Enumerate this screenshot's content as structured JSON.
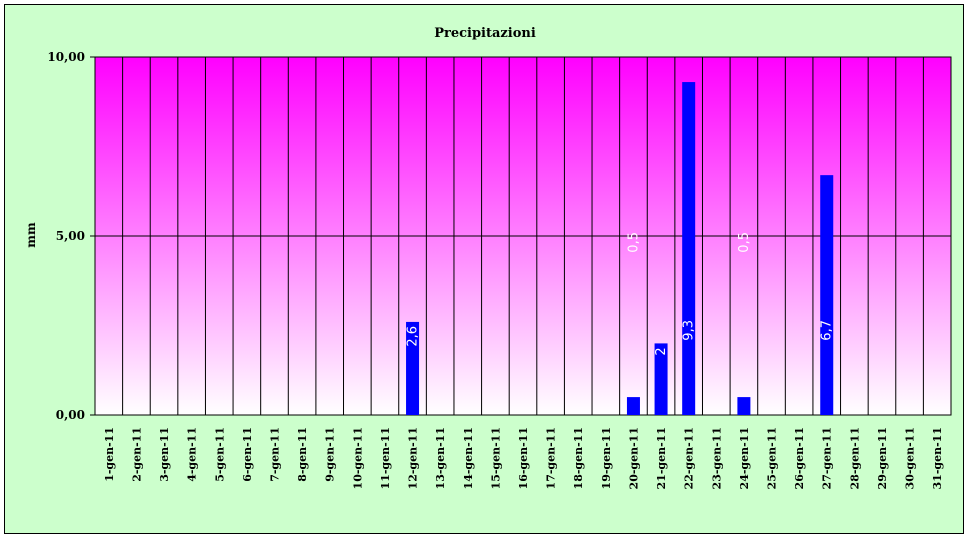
{
  "chart_data": {
    "type": "bar",
    "title": "Precipitazioni",
    "ylabel": "mm",
    "xlabel": "",
    "ylim": [
      0,
      10
    ],
    "yticks": [
      "0,00",
      "5,00",
      "10,00"
    ],
    "ytick_values": [
      0,
      5,
      10
    ],
    "categories": [
      "1-gen-11",
      "2-gen-11",
      "3-gen-11",
      "4-gen-11",
      "5-gen-11",
      "6-gen-11",
      "7-gen-11",
      "8-gen-11",
      "9-gen-11",
      "10-gen-11",
      "11-gen-11",
      "12-gen-11",
      "13-gen-11",
      "14-gen-11",
      "15-gen-11",
      "16-gen-11",
      "17-gen-11",
      "18-gen-11",
      "19-gen-11",
      "20-gen-11",
      "21-gen-11",
      "22-gen-11",
      "23-gen-11",
      "24-gen-11",
      "25-gen-11",
      "26-gen-11",
      "27-gen-11",
      "28-gen-11",
      "29-gen-11",
      "30-gen-11",
      "31-gen-11"
    ],
    "values": [
      0,
      0,
      0,
      0,
      0,
      0,
      0,
      0,
      0,
      0,
      0,
      2.6,
      0,
      0,
      0,
      0,
      0,
      0,
      0,
      0.5,
      2,
      9.3,
      0,
      0.5,
      0,
      0,
      6.7,
      0,
      0,
      0,
      0
    ],
    "data_labels": [
      "",
      "",
      "",
      "",
      "",
      "",
      "",
      "",
      "",
      "",
      "",
      "2,6",
      "",
      "",
      "",
      "",
      "",
      "",
      "",
      "0,5",
      "2",
      "9,3",
      "",
      "0,5",
      "",
      "",
      "6,7",
      "",
      "",
      "",
      ""
    ],
    "grid": true,
    "colors": {
      "bar": "#0000ff",
      "plot_top": "#ff00ff",
      "plot_bottom": "#ffffff",
      "background": "#ccffcc"
    }
  }
}
